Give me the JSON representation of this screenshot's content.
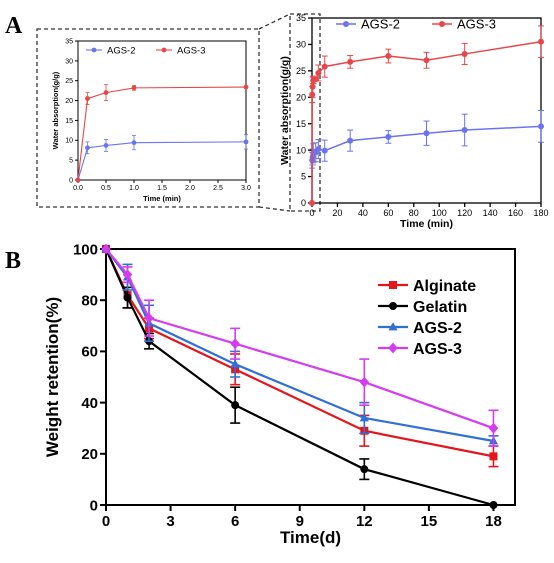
{
  "panels": {
    "a_label": "A",
    "b_label": "B"
  },
  "chart_data": [
    {
      "id": "A-inset",
      "type": "line",
      "xlabel": "Time (min)",
      "ylabel": "Water absorption(g/g)",
      "xlim": [
        0,
        3.0
      ],
      "ylim": [
        0,
        35
      ],
      "xticks": [
        "0.0",
        "0.5",
        "1.0",
        "1.5",
        "2.0",
        "2.5",
        "3.0"
      ],
      "yticks": [
        "0",
        "5",
        "10",
        "15",
        "20",
        "25",
        "30",
        "35"
      ],
      "legend_position": "top",
      "series": [
        {
          "name": "AGS-2",
          "color": "#6a74f0",
          "marker": "circle",
          "x": [
            0,
            0.17,
            0.5,
            1.0,
            3.0
          ],
          "y": [
            0,
            8.1,
            8.7,
            9.4,
            9.6
          ],
          "err": [
            0,
            1.5,
            1.5,
            1.8,
            1.8
          ]
        },
        {
          "name": "AGS-3",
          "color": "#e8474a",
          "marker": "circle",
          "x": [
            0,
            0.17,
            0.5,
            1.0,
            3.0
          ],
          "y": [
            0,
            20.5,
            22.0,
            23.2,
            23.4
          ],
          "err": [
            0,
            1.5,
            2.0,
            0.6,
            0.2
          ]
        }
      ]
    },
    {
      "id": "A-main",
      "type": "line",
      "xlabel": "Time (min)",
      "ylabel": "Water absorption(g/g)",
      "xlim": [
        0,
        180
      ],
      "ylim": [
        0,
        35
      ],
      "xticks": [
        "0",
        "20",
        "40",
        "60",
        "80",
        "100",
        "120",
        "140",
        "160",
        "180"
      ],
      "yticks": [
        "0",
        "5",
        "10",
        "15",
        "20",
        "25",
        "30",
        "35"
      ],
      "legend_position": "top",
      "series": [
        {
          "name": "AGS-2",
          "color": "#6a74f0",
          "marker": "circle",
          "x": [
            0,
            0.17,
            0.5,
            1,
            3,
            5,
            10,
            30,
            60,
            90,
            120,
            180
          ],
          "y": [
            0,
            8.1,
            8.7,
            9.4,
            9.6,
            10.2,
            9.9,
            11.8,
            12.5,
            13.2,
            13.8,
            14.5
          ],
          "err": [
            0,
            1.5,
            1.5,
            1.8,
            1.8,
            1.8,
            2.0,
            2.0,
            1.2,
            2.3,
            3.0,
            3.0
          ]
        },
        {
          "name": "AGS-3",
          "color": "#e8474a",
          "marker": "circle",
          "x": [
            0,
            0.17,
            0.5,
            1,
            3,
            5,
            10,
            30,
            60,
            90,
            120,
            180
          ],
          "y": [
            0,
            20.5,
            22.0,
            23.2,
            23.4,
            24.6,
            25.8,
            26.7,
            27.8,
            27.0,
            28.2,
            30.5
          ],
          "err": [
            0,
            1.5,
            2.0,
            0.6,
            0.2,
            1.5,
            2.0,
            1.2,
            1.3,
            1.5,
            2.0,
            3.0
          ]
        }
      ]
    },
    {
      "id": "B",
      "type": "line",
      "xlabel": "Time(d)",
      "ylabel": "Weight retention(%)",
      "xlim": [
        0,
        19
      ],
      "ylim": [
        0,
        100
      ],
      "xticks": [
        "0",
        "3",
        "6",
        "9",
        "12",
        "15",
        "18"
      ],
      "yticks": [
        "0",
        "20",
        "40",
        "60",
        "80",
        "100"
      ],
      "legend_position": "top-right",
      "series": [
        {
          "name": "Alginate",
          "color": "#e3161c",
          "marker": "square",
          "x": [
            0,
            1,
            2,
            6,
            12,
            18
          ],
          "y": [
            100,
            82,
            69,
            53,
            29,
            19
          ],
          "err": [
            0,
            5,
            4,
            6,
            6,
            4
          ]
        },
        {
          "name": "Gelatin",
          "color": "#000000",
          "marker": "circle",
          "x": [
            0,
            1,
            2,
            6,
            12,
            18
          ],
          "y": [
            100,
            81,
            64,
            39,
            14,
            0
          ],
          "err": [
            0,
            4,
            3,
            7,
            4,
            0
          ]
        },
        {
          "name": "AGS-2",
          "color": "#2f6fd6",
          "marker": "triangle",
          "x": [
            0,
            1,
            2,
            6,
            12,
            18
          ],
          "y": [
            100,
            89,
            71,
            55,
            34,
            25
          ],
          "err": [
            0,
            5,
            7,
            5,
            6,
            2
          ]
        },
        {
          "name": "AGS-3",
          "color": "#d43cf0",
          "marker": "diamond",
          "x": [
            0,
            1,
            2,
            6,
            12,
            18
          ],
          "y": [
            100,
            90,
            73,
            63,
            48,
            30
          ],
          "err": [
            0,
            3,
            7,
            6,
            9,
            7
          ]
        }
      ]
    }
  ]
}
